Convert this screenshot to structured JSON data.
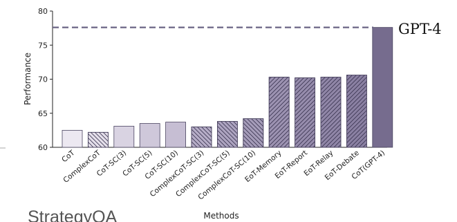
{
  "chart_data": {
    "type": "bar",
    "panel_title": "StrategyQA",
    "xlabel": "Methods",
    "ylabel": "Performance",
    "ylim": [
      60,
      80
    ],
    "yticks": [
      60,
      65,
      70,
      75,
      80
    ],
    "grid": false,
    "legend": "none",
    "categories": [
      "CoT",
      "ComplexCoT",
      "CoT-SC(3)",
      "CoT-SC(5)",
      "CoT-SC(10)",
      "ComplexCoT-SC(3)",
      "ComplexCoT-SC(5)",
      "ComplexCoT-SC(10)",
      "EoT-Memory",
      "EoT-Report",
      "EoT-Relay",
      "EoT-Debate",
      "CoT(GPT-4)"
    ],
    "values": [
      62.5,
      62.2,
      63.1,
      63.5,
      63.7,
      63.0,
      63.8,
      64.2,
      70.3,
      70.2,
      70.3,
      70.6,
      77.6
    ],
    "hatch": [
      "none",
      "backslash",
      "none",
      "none",
      "none",
      "backslash",
      "backslash",
      "backslash",
      "slash",
      "slash",
      "slash",
      "slash",
      "none"
    ],
    "colors": [
      "#ece8f1",
      "#e4dfea",
      "#d9d3e2",
      "#cfc8da",
      "#c6bed3",
      "#b6adc7",
      "#ada4c0",
      "#a59cb9",
      "#9c92b1",
      "#968cac",
      "#9086a7",
      "#8a80a2",
      "#766c8e"
    ],
    "reference_line": {
      "label": "GPT-4",
      "value": 77.6,
      "color": "#6a6484"
    }
  }
}
